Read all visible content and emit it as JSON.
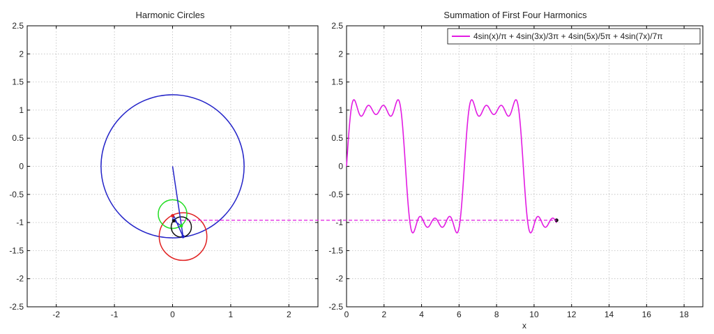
{
  "colors": {
    "blue": "#2323c8",
    "red": "#e02020",
    "green": "#22dd22",
    "black": "#111111",
    "magenta": "#e21be2",
    "grid": "#bdbdbd"
  },
  "chart_data": [
    {
      "type": "line",
      "title": "Harmonic Circles",
      "xlabel": "",
      "ylabel": "",
      "xlim": [
        -2.5,
        2.5
      ],
      "ylim": [
        -2.5,
        2.5
      ],
      "xticks": [
        -2,
        -1,
        0,
        1,
        2
      ],
      "xtick_labels": [
        "-2",
        "-1",
        "0",
        "1",
        "2"
      ],
      "yticks": [
        -2.5,
        -2,
        -1.5,
        -1,
        -0.5,
        0,
        0.5,
        1,
        1.5,
        2,
        2.5
      ],
      "ytick_labels": [
        "-2.5",
        "-2",
        "-1.5",
        "-1",
        "-0.5",
        "0",
        "0.5",
        "1",
        "1.5",
        "2",
        "2.5"
      ],
      "grid": true,
      "circles": [
        {
          "name": "harmonic-1-circle",
          "color": "blue",
          "cx": 0,
          "cy": 0,
          "r": 1.273
        },
        {
          "name": "harmonic-2-circle",
          "color": "red",
          "cx": 0.18,
          "cy": -1.25,
          "r": 0.424
        },
        {
          "name": "harmonic-3-circle",
          "color": "green",
          "cx": 0.0,
          "cy": -0.85,
          "r": 0.255
        },
        {
          "name": "harmonic-4-circle",
          "color": "black",
          "cx": 0.15,
          "cy": -1.08,
          "r": 0.18
        }
      ],
      "phasor_path": [
        [
          0,
          0
        ],
        [
          0.18,
          -1.25
        ],
        [
          0.02,
          -0.88
        ],
        [
          0.0,
          -0.95
        ],
        [
          0.15,
          -1.06
        ]
      ],
      "phasor_color": "blue",
      "markers": [
        {
          "color": "red",
          "x": 0.0,
          "y": -0.88
        },
        {
          "color": "black",
          "x": 0.02,
          "y": -0.97
        },
        {
          "color": "green",
          "x": 0.15,
          "y": -1.06
        },
        {
          "color": "blue",
          "x": 0.18,
          "y": -1.25
        }
      ]
    },
    {
      "type": "line",
      "title": "Summation of First Four Harmonics",
      "xlabel": "x",
      "ylabel": "",
      "xlim": [
        0,
        19
      ],
      "ylim": [
        -2.5,
        2.5
      ],
      "xticks": [
        0,
        2,
        4,
        6,
        8,
        10,
        12,
        14,
        16,
        18
      ],
      "xtick_labels": [
        "0",
        "2",
        "4",
        "6",
        "8",
        "10",
        "12",
        "14",
        "16",
        "18"
      ],
      "yticks": [
        -2.5,
        -2,
        -1.5,
        -1,
        -0.5,
        0,
        0.5,
        1,
        1.5,
        2,
        2.5
      ],
      "ytick_labels": [
        "-2.5",
        "-2",
        "-1.5",
        "-1",
        "-0.5",
        "0",
        "0.5",
        "1",
        "1.5",
        "2",
        "2.5"
      ],
      "grid": true,
      "legend": "top-right",
      "series": [
        {
          "name": "4sin(x)/π + 4sin(3x)/3π + 4sin(5x)/5π + 4sin(7x)/7π",
          "color": "magenta",
          "function": "fourier_square_4",
          "x_range": [
            0,
            11.2
          ]
        }
      ],
      "endpoint": {
        "x": 11.2,
        "y": -0.96,
        "color": "black"
      },
      "connector_y": -0.96,
      "connector_color": "magenta"
    }
  ]
}
